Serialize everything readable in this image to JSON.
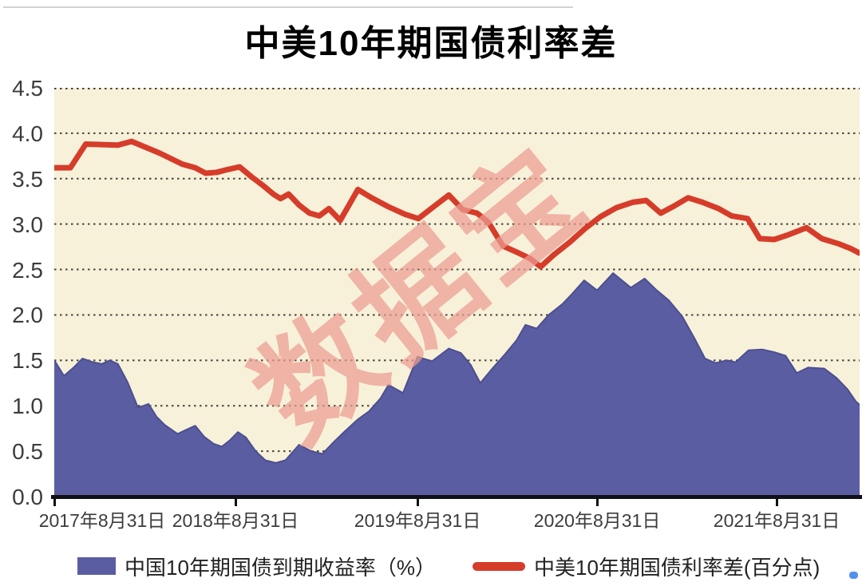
{
  "title": "中美10年期国债利率差",
  "watermark": "数据宝",
  "colors": {
    "plot_background": "#f7f1da",
    "gridline": "#45433a",
    "axis_line": "#101018",
    "area_fill": "#5a5da1",
    "area_edge": "#4c4f8e",
    "line_stroke": "#d63c2a",
    "watermark": "#ec9d92",
    "label_text": "#3c3c3c"
  },
  "legend": [
    {
      "type": "area",
      "swatch_color": "#5a5da1",
      "label": "中国10年期国债到期收益率（%）"
    },
    {
      "type": "line",
      "swatch_color": "#d63c2a",
      "label": "中美10年期国债利率差(百分点)"
    }
  ],
  "chart_data": {
    "type": "area+line",
    "title": "中美10年期国债利率差",
    "ylim": [
      0,
      4.5
    ],
    "yticks": [
      {
        "value": 0.0,
        "label": "0.0"
      },
      {
        "value": 0.5,
        "label": "0.5"
      },
      {
        "value": 1.0,
        "label": "1.0"
      },
      {
        "value": 1.5,
        "label": "1.5"
      },
      {
        "value": 2.0,
        "label": "2.0"
      },
      {
        "value": 2.5,
        "label": "2.5"
      },
      {
        "value": 3.0,
        "label": "3.0"
      },
      {
        "value": 3.5,
        "label": "3.5"
      },
      {
        "value": 4.0,
        "label": "4.0"
      },
      {
        "value": 4.5,
        "label": "4.5"
      }
    ],
    "xticks": [
      {
        "label": "2017年8月31日",
        "x": 0.0
      },
      {
        "label": "2018年8月31日",
        "x": 0.225
      },
      {
        "label": "2019年8月31日",
        "x": 0.451
      },
      {
        "label": "2020年8月31日",
        "x": 0.674
      },
      {
        "label": "2021年8月31日",
        "x": 0.897
      }
    ],
    "grid": "horizontal-dotted",
    "legend_position": "bottom",
    "x_axis_note": "weekly data from 2017-08-31, x given as fraction of axis width",
    "series": [
      {
        "name": "中国10年期国债到期收益率（%）",
        "render": "area",
        "color": "#5a5da1",
        "points": [
          [
            0.0,
            1.5
          ],
          [
            0.012,
            1.33
          ],
          [
            0.024,
            1.42
          ],
          [
            0.035,
            1.52
          ],
          [
            0.048,
            1.48
          ],
          [
            0.059,
            1.46
          ],
          [
            0.069,
            1.5
          ],
          [
            0.079,
            1.46
          ],
          [
            0.091,
            1.26
          ],
          [
            0.104,
            0.98
          ],
          [
            0.111,
            1.0
          ],
          [
            0.117,
            1.02
          ],
          [
            0.127,
            0.88
          ],
          [
            0.137,
            0.79
          ],
          [
            0.153,
            0.69
          ],
          [
            0.165,
            0.74
          ],
          [
            0.175,
            0.78
          ],
          [
            0.186,
            0.66
          ],
          [
            0.198,
            0.58
          ],
          [
            0.208,
            0.55
          ],
          [
            0.218,
            0.62
          ],
          [
            0.228,
            0.71
          ],
          [
            0.238,
            0.65
          ],
          [
            0.25,
            0.5
          ],
          [
            0.262,
            0.4
          ],
          [
            0.275,
            0.37
          ],
          [
            0.287,
            0.4
          ],
          [
            0.304,
            0.57
          ],
          [
            0.319,
            0.5
          ],
          [
            0.333,
            0.47
          ],
          [
            0.347,
            0.6
          ],
          [
            0.361,
            0.72
          ],
          [
            0.377,
            0.85
          ],
          [
            0.391,
            0.94
          ],
          [
            0.405,
            1.08
          ],
          [
            0.415,
            1.23
          ],
          [
            0.433,
            1.14
          ],
          [
            0.451,
            1.54
          ],
          [
            0.469,
            1.49
          ],
          [
            0.49,
            1.63
          ],
          [
            0.505,
            1.58
          ],
          [
            0.517,
            1.45
          ],
          [
            0.529,
            1.25
          ],
          [
            0.545,
            1.42
          ],
          [
            0.56,
            1.57
          ],
          [
            0.574,
            1.72
          ],
          [
            0.585,
            1.89
          ],
          [
            0.599,
            1.85
          ],
          [
            0.614,
            2.0
          ],
          [
            0.631,
            2.12
          ],
          [
            0.644,
            2.24
          ],
          [
            0.658,
            2.38
          ],
          [
            0.674,
            2.27
          ],
          [
            0.694,
            2.46
          ],
          [
            0.716,
            2.3
          ],
          [
            0.733,
            2.4
          ],
          [
            0.747,
            2.28
          ],
          [
            0.763,
            2.16
          ],
          [
            0.78,
            1.98
          ],
          [
            0.795,
            1.74
          ],
          [
            0.808,
            1.52
          ],
          [
            0.821,
            1.47
          ],
          [
            0.835,
            1.5
          ],
          [
            0.846,
            1.48
          ],
          [
            0.862,
            1.61
          ],
          [
            0.879,
            1.62
          ],
          [
            0.894,
            1.59
          ],
          [
            0.908,
            1.55
          ],
          [
            0.922,
            1.36
          ],
          [
            0.936,
            1.42
          ],
          [
            0.956,
            1.41
          ],
          [
            0.971,
            1.31
          ],
          [
            0.985,
            1.18
          ],
          [
            0.995,
            1.05
          ],
          [
            1.0,
            1.01
          ]
        ]
      },
      {
        "name": "中美10年期国债利率差(百分点)",
        "render": "line",
        "color": "#d63c2a",
        "points": [
          [
            0.0,
            3.62
          ],
          [
            0.02,
            3.62
          ],
          [
            0.039,
            3.88
          ],
          [
            0.079,
            3.87
          ],
          [
            0.096,
            3.91
          ],
          [
            0.131,
            3.78
          ],
          [
            0.159,
            3.66
          ],
          [
            0.175,
            3.62
          ],
          [
            0.188,
            3.56
          ],
          [
            0.202,
            3.57
          ],
          [
            0.215,
            3.6
          ],
          [
            0.23,
            3.63
          ],
          [
            0.245,
            3.52
          ],
          [
            0.26,
            3.42
          ],
          [
            0.272,
            3.33
          ],
          [
            0.281,
            3.28
          ],
          [
            0.291,
            3.33
          ],
          [
            0.304,
            3.21
          ],
          [
            0.317,
            3.12
          ],
          [
            0.329,
            3.09
          ],
          [
            0.341,
            3.17
          ],
          [
            0.355,
            3.04
          ],
          [
            0.377,
            3.38
          ],
          [
            0.394,
            3.29
          ],
          [
            0.415,
            3.19
          ],
          [
            0.435,
            3.11
          ],
          [
            0.452,
            3.06
          ],
          [
            0.471,
            3.19
          ],
          [
            0.49,
            3.32
          ],
          [
            0.507,
            3.16
          ],
          [
            0.525,
            3.12
          ],
          [
            0.539,
            3.02
          ],
          [
            0.557,
            2.76
          ],
          [
            0.577,
            2.68
          ],
          [
            0.591,
            2.62
          ],
          [
            0.604,
            2.53
          ],
          [
            0.62,
            2.66
          ],
          [
            0.64,
            2.8
          ],
          [
            0.659,
            2.95
          ],
          [
            0.678,
            3.08
          ],
          [
            0.698,
            3.18
          ],
          [
            0.718,
            3.24
          ],
          [
            0.735,
            3.26
          ],
          [
            0.753,
            3.12
          ],
          [
            0.77,
            3.2
          ],
          [
            0.787,
            3.29
          ],
          [
            0.805,
            3.24
          ],
          [
            0.825,
            3.17
          ],
          [
            0.841,
            3.09
          ],
          [
            0.861,
            3.06
          ],
          [
            0.876,
            2.84
          ],
          [
            0.894,
            2.83
          ],
          [
            0.911,
            2.88
          ],
          [
            0.934,
            2.96
          ],
          [
            0.953,
            2.84
          ],
          [
            0.975,
            2.78
          ],
          [
            0.989,
            2.73
          ],
          [
            1.0,
            2.68
          ]
        ]
      }
    ]
  }
}
